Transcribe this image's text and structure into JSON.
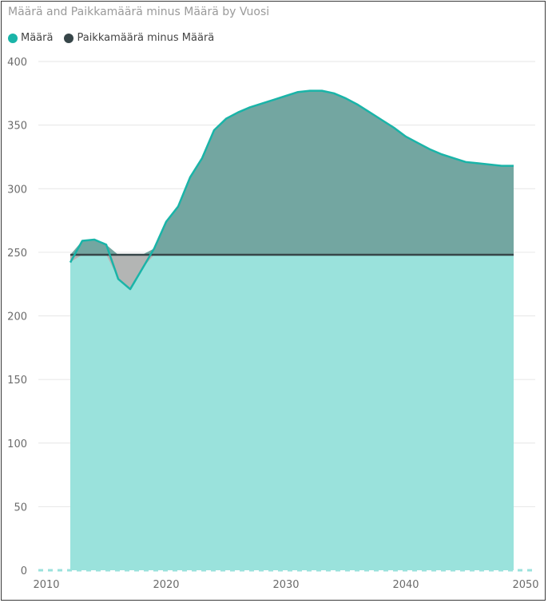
{
  "title": "Määrä and Paikkamäärä minus Määrä by Vuosi",
  "colors": {
    "maara": "#1ab4a8",
    "maara_fill": "#9ae2dc",
    "paikka": "#374649",
    "gain_fill": "#73a6a1",
    "deficit_fill": "#b3b5b4",
    "grid": "#e6e6e6"
  },
  "chart_data": {
    "type": "area",
    "title": "Määrä and Paikkamäärä minus Määrä by Vuosi",
    "xlabel": "",
    "ylabel": "",
    "xlim": [
      2009,
      2051
    ],
    "ylim": [
      0,
      400
    ],
    "x_ticks": [
      2010,
      2020,
      2030,
      2040,
      2050
    ],
    "y_ticks": [
      0,
      50,
      100,
      150,
      200,
      250,
      300,
      350,
      400
    ],
    "grid": true,
    "legend_position": "top-left",
    "series": [
      {
        "name": "Määrä",
        "x": [
          2012,
          2013,
          2014,
          2015,
          2016,
          2017,
          2018,
          2019,
          2020,
          2021,
          2022,
          2023,
          2024,
          2025,
          2026,
          2027,
          2028,
          2029,
          2030,
          2031,
          2032,
          2033,
          2034,
          2035,
          2036,
          2037,
          2038,
          2039,
          2040,
          2041,
          2042,
          2043,
          2044,
          2045,
          2046,
          2047,
          2048,
          2049
        ],
        "values": [
          242,
          259,
          260,
          256,
          229,
          221,
          237,
          253,
          274,
          286,
          309,
          324,
          346,
          355,
          360,
          364,
          367,
          370,
          373,
          376,
          377,
          377,
          375,
          371,
          366,
          360,
          354,
          348,
          341,
          336,
          331,
          327,
          324,
          321,
          320,
          319,
          318,
          318
        ]
      },
      {
        "name": "Paikkamäärä minus Määrä",
        "x": [
          2012,
          2049
        ],
        "values": [
          248,
          248
        ]
      }
    ],
    "legend": [
      "Määrä",
      "Paikkamäärä minus Määrä"
    ]
  }
}
